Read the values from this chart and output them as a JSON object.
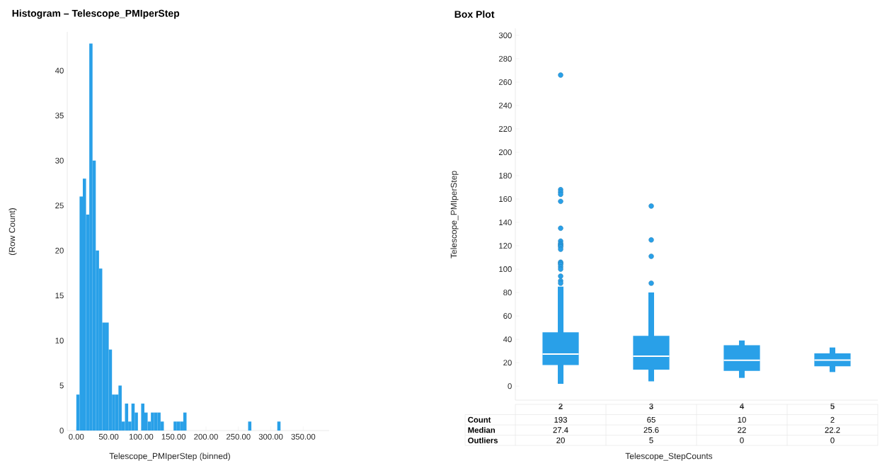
{
  "chart_data": [
    {
      "type": "histogram",
      "title": "Histogram – Telescope_PMIperStep",
      "xlabel": "Telescope_PMIperStep (binned)",
      "ylabel": "(Row Count)",
      "color": "#29a0e8",
      "bins": [
        0,
        5,
        10,
        15,
        20,
        25,
        30,
        35,
        40,
        45,
        50,
        55,
        60,
        65,
        70,
        75,
        80,
        85,
        90,
        95,
        100,
        105,
        110,
        115,
        120,
        125,
        130,
        135,
        140,
        145,
        150,
        155,
        160,
        165,
        170,
        175,
        180,
        185,
        190,
        195,
        200,
        205,
        210,
        215,
        220,
        225,
        230,
        235,
        240,
        245,
        250,
        255,
        260,
        265,
        270,
        275,
        280,
        285,
        290,
        295,
        300,
        305,
        310,
        315
      ],
      "values": [
        4,
        26,
        28,
        24,
        43,
        30,
        20,
        18,
        12,
        12,
        9,
        4,
        4,
        5,
        1,
        3,
        1,
        3,
        2,
        0,
        3,
        2,
        1,
        2,
        2,
        2,
        1,
        0,
        0,
        0,
        1,
        1,
        1,
        2,
        0,
        0,
        0,
        0,
        0,
        0,
        0,
        0,
        0,
        0,
        0,
        0,
        0,
        0,
        0,
        0,
        0,
        0,
        0,
        1,
        0,
        0,
        0,
        0,
        0,
        0,
        0,
        0,
        1
      ],
      "xlim": [
        -14,
        390
      ],
      "ylim": [
        0,
        44.3
      ],
      "xticks": [
        {
          "value": 0,
          "label": "0.00"
        },
        {
          "value": 50,
          "label": "50.00"
        },
        {
          "value": 100,
          "label": "100.00"
        },
        {
          "value": 150,
          "label": "150.00"
        },
        {
          "value": 200,
          "label": "200.00"
        },
        {
          "value": 250,
          "label": "250.00"
        },
        {
          "value": 300,
          "label": "300.00"
        },
        {
          "value": 350,
          "label": "350.00"
        }
      ],
      "yticks": [
        0,
        5,
        10,
        15,
        20,
        25,
        30,
        35,
        40
      ]
    },
    {
      "type": "box",
      "title": "Box Plot",
      "xlabel": "Telescope_StepCounts",
      "ylabel": "Telescope_PMIperStep",
      "color": "#29a0e8",
      "categories": [
        "2",
        "3",
        "4",
        "5"
      ],
      "boxes": [
        {
          "low": 2,
          "q1": 18,
          "median": 27.4,
          "q3": 46,
          "high": 85,
          "outliers": [
            266,
            168,
            166,
            164,
            158,
            135,
            124,
            122,
            121,
            120,
            119,
            117,
            106,
            105,
            104,
            102,
            100,
            94,
            90,
            88
          ]
        },
        {
          "low": 4,
          "q1": 14,
          "median": 25.6,
          "q3": 43,
          "high": 80,
          "outliers": [
            154,
            125,
            111,
            88
          ]
        },
        {
          "low": 7,
          "q1": 13,
          "median": 22,
          "q3": 35,
          "high": 39
        },
        {
          "low": 12,
          "q1": 17,
          "median": 22.2,
          "q3": 28,
          "high": 33
        }
      ],
      "ylim": [
        -12,
        306
      ],
      "yticks": [
        0,
        20,
        40,
        60,
        80,
        100,
        120,
        140,
        160,
        180,
        200,
        220,
        240,
        260,
        280,
        300
      ],
      "annotations": [
        "Count",
        "Median",
        "Outliers",
        "193",
        "65",
        "10",
        "2",
        "27.4",
        "25.6",
        "22",
        "22.2",
        "20",
        "5",
        "0",
        "0"
      ]
    }
  ]
}
